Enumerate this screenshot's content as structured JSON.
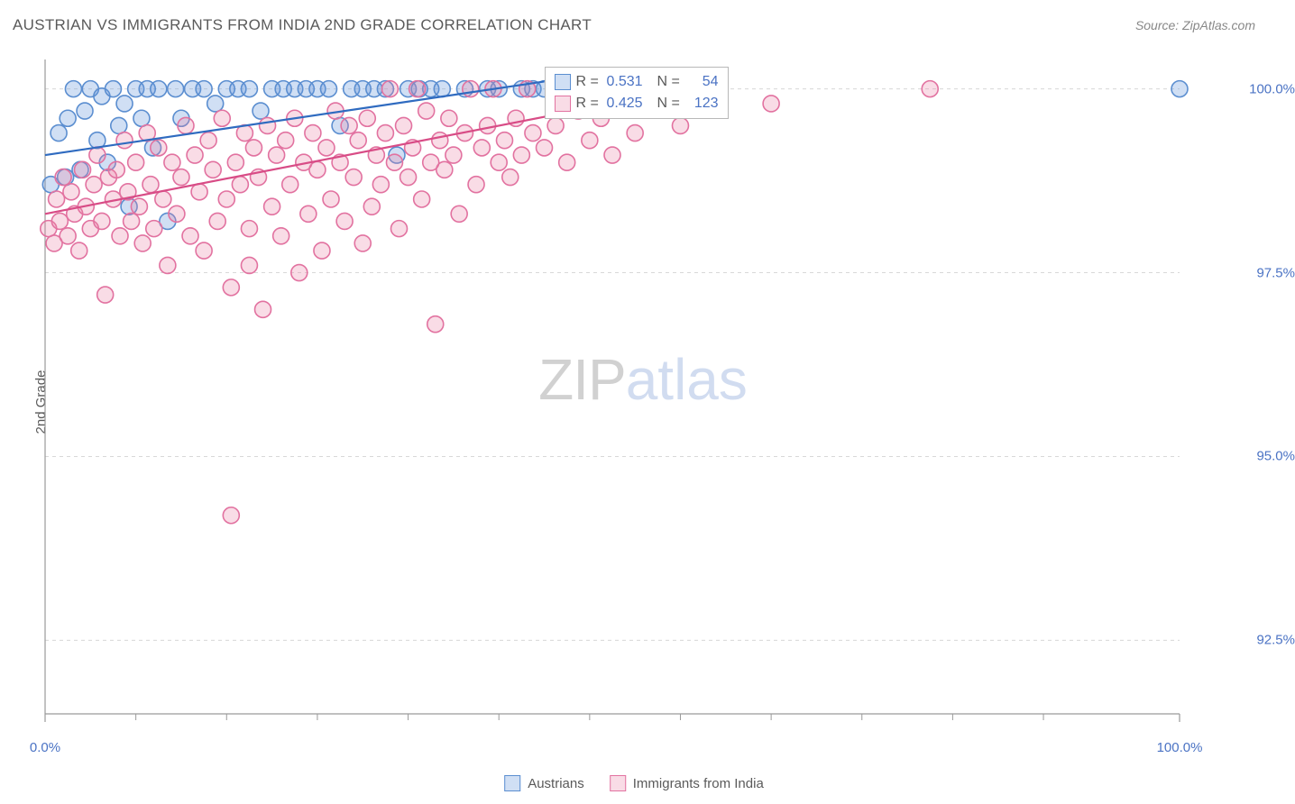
{
  "title": "AUSTRIAN VS IMMIGRANTS FROM INDIA 2ND GRADE CORRELATION CHART",
  "source": "Source: ZipAtlas.com",
  "yaxis_label": "2nd Grade",
  "watermark": {
    "left": "ZIP",
    "right": "atlas"
  },
  "chart": {
    "type": "scatter",
    "background_color": "#ffffff",
    "grid_color": "#d8d8d8",
    "axis_color": "#9a9a9a",
    "tick_label_color": "#4b73c4",
    "text_color": "#5a5a5a",
    "xlim": [
      0,
      100
    ],
    "ylim": [
      91.5,
      100.4
    ],
    "xticks": [
      0,
      100
    ],
    "xtick_labels": [
      "0.0%",
      "100.0%"
    ],
    "xtick_minor": [
      8,
      16,
      24,
      32,
      40,
      48,
      56,
      64,
      72,
      80,
      88
    ],
    "yticks": [
      92.5,
      95.0,
      97.5,
      100.0
    ],
    "ytick_labels": [
      "92.5%",
      "95.0%",
      "97.5%",
      "100.0%"
    ],
    "marker_radius": 9,
    "marker_stroke_width": 1.6,
    "series": [
      {
        "id": "austrians",
        "label": "Austrians",
        "fill": "rgba(100,150,220,0.30)",
        "stroke": "#5b8ed0",
        "R": "0.531",
        "N": "54",
        "trend": {
          "x0": 0,
          "y0": 99.1,
          "x1": 44,
          "y1": 100.1,
          "stroke": "#2f6bc0",
          "width": 2.2
        },
        "points": [
          [
            0.5,
            98.7
          ],
          [
            1.2,
            99.4
          ],
          [
            1.8,
            98.8
          ],
          [
            2.0,
            99.6
          ],
          [
            2.5,
            100.0
          ],
          [
            3.1,
            98.9
          ],
          [
            3.5,
            99.7
          ],
          [
            4.0,
            100.0
          ],
          [
            4.6,
            99.3
          ],
          [
            5.0,
            99.9
          ],
          [
            5.5,
            99.0
          ],
          [
            6.0,
            100.0
          ],
          [
            6.5,
            99.5
          ],
          [
            7.0,
            99.8
          ],
          [
            7.4,
            98.4
          ],
          [
            8.0,
            100.0
          ],
          [
            8.5,
            99.6
          ],
          [
            9.0,
            100.0
          ],
          [
            9.5,
            99.2
          ],
          [
            10.0,
            100.0
          ],
          [
            10.8,
            98.2
          ],
          [
            11.5,
            100.0
          ],
          [
            12.0,
            99.6
          ],
          [
            13.0,
            100.0
          ],
          [
            14.0,
            100.0
          ],
          [
            15.0,
            99.8
          ],
          [
            16.0,
            100.0
          ],
          [
            17.0,
            100.0
          ],
          [
            18.0,
            100.0
          ],
          [
            19.0,
            99.7
          ],
          [
            20.0,
            100.0
          ],
          [
            21.0,
            100.0
          ],
          [
            22.0,
            100.0
          ],
          [
            23.0,
            100.0
          ],
          [
            24.0,
            100.0
          ],
          [
            25.0,
            100.0
          ],
          [
            26.0,
            99.5
          ],
          [
            27.0,
            100.0
          ],
          [
            28.0,
            100.0
          ],
          [
            29.0,
            100.0
          ],
          [
            30.0,
            100.0
          ],
          [
            31.0,
            99.1
          ],
          [
            32.0,
            100.0
          ],
          [
            33.0,
            100.0
          ],
          [
            34.0,
            100.0
          ],
          [
            35.0,
            100.0
          ],
          [
            37.0,
            100.0
          ],
          [
            39.0,
            100.0
          ],
          [
            40.0,
            100.0
          ],
          [
            42.0,
            100.0
          ],
          [
            43.0,
            100.0
          ],
          [
            44.0,
            100.0
          ],
          [
            45.0,
            100.0
          ],
          [
            100.0,
            100.0
          ]
        ]
      },
      {
        "id": "india",
        "label": "Immigrants from India",
        "fill": "rgba(235,130,165,0.28)",
        "stroke": "#e272a0",
        "R": "0.425",
        "N": "123",
        "trend": {
          "x0": 0,
          "y0": 98.3,
          "x1": 50,
          "y1": 99.8,
          "stroke": "#d84c86",
          "width": 2.2
        },
        "points": [
          [
            0.3,
            98.1
          ],
          [
            0.8,
            97.9
          ],
          [
            1.0,
            98.5
          ],
          [
            1.3,
            98.2
          ],
          [
            1.6,
            98.8
          ],
          [
            2.0,
            98.0
          ],
          [
            2.3,
            98.6
          ],
          [
            2.6,
            98.3
          ],
          [
            3.0,
            97.8
          ],
          [
            3.3,
            98.9
          ],
          [
            3.6,
            98.4
          ],
          [
            4.0,
            98.1
          ],
          [
            4.3,
            98.7
          ],
          [
            4.6,
            99.1
          ],
          [
            5.0,
            98.2
          ],
          [
            5.3,
            97.2
          ],
          [
            5.6,
            98.8
          ],
          [
            6.0,
            98.5
          ],
          [
            6.3,
            98.9
          ],
          [
            6.6,
            98.0
          ],
          [
            7.0,
            99.3
          ],
          [
            7.3,
            98.6
          ],
          [
            7.6,
            98.2
          ],
          [
            8.0,
            99.0
          ],
          [
            8.3,
            98.4
          ],
          [
            8.6,
            97.9
          ],
          [
            9.0,
            99.4
          ],
          [
            9.3,
            98.7
          ],
          [
            9.6,
            98.1
          ],
          [
            10.0,
            99.2
          ],
          [
            10.4,
            98.5
          ],
          [
            10.8,
            97.6
          ],
          [
            11.2,
            99.0
          ],
          [
            11.6,
            98.3
          ],
          [
            12.0,
            98.8
          ],
          [
            12.4,
            99.5
          ],
          [
            12.8,
            98.0
          ],
          [
            13.2,
            99.1
          ],
          [
            13.6,
            98.6
          ],
          [
            14.0,
            97.8
          ],
          [
            14.4,
            99.3
          ],
          [
            14.8,
            98.9
          ],
          [
            15.2,
            98.2
          ],
          [
            15.6,
            99.6
          ],
          [
            16.0,
            98.5
          ],
          [
            16.4,
            97.3
          ],
          [
            16.4,
            94.2
          ],
          [
            16.8,
            99.0
          ],
          [
            17.2,
            98.7
          ],
          [
            17.6,
            99.4
          ],
          [
            18.0,
            98.1
          ],
          [
            18.0,
            97.6
          ],
          [
            18.4,
            99.2
          ],
          [
            18.8,
            98.8
          ],
          [
            19.2,
            97.0
          ],
          [
            19.6,
            99.5
          ],
          [
            20.0,
            98.4
          ],
          [
            20.4,
            99.1
          ],
          [
            20.8,
            98.0
          ],
          [
            21.2,
            99.3
          ],
          [
            21.6,
            98.7
          ],
          [
            22.0,
            99.6
          ],
          [
            22.4,
            97.5
          ],
          [
            22.8,
            99.0
          ],
          [
            23.2,
            98.3
          ],
          [
            23.6,
            99.4
          ],
          [
            24.0,
            98.9
          ],
          [
            24.4,
            97.8
          ],
          [
            24.8,
            99.2
          ],
          [
            25.2,
            98.5
          ],
          [
            25.6,
            99.7
          ],
          [
            26.0,
            99.0
          ],
          [
            26.4,
            98.2
          ],
          [
            26.8,
            99.5
          ],
          [
            27.2,
            98.8
          ],
          [
            27.6,
            99.3
          ],
          [
            28.0,
            97.9
          ],
          [
            28.4,
            99.6
          ],
          [
            28.8,
            98.4
          ],
          [
            29.2,
            99.1
          ],
          [
            29.6,
            98.7
          ],
          [
            30.0,
            99.4
          ],
          [
            30.4,
            100.0
          ],
          [
            30.8,
            99.0
          ],
          [
            31.2,
            98.1
          ],
          [
            31.6,
            99.5
          ],
          [
            32.0,
            98.8
          ],
          [
            32.4,
            99.2
          ],
          [
            32.8,
            100.0
          ],
          [
            33.2,
            98.5
          ],
          [
            33.6,
            99.7
          ],
          [
            34.0,
            99.0
          ],
          [
            34.4,
            96.8
          ],
          [
            34.8,
            99.3
          ],
          [
            35.2,
            98.9
          ],
          [
            35.6,
            99.6
          ],
          [
            36.0,
            99.1
          ],
          [
            36.5,
            98.3
          ],
          [
            37.0,
            99.4
          ],
          [
            37.5,
            100.0
          ],
          [
            38.0,
            98.7
          ],
          [
            38.5,
            99.2
          ],
          [
            39.0,
            99.5
          ],
          [
            39.5,
            100.0
          ],
          [
            40.0,
            99.0
          ],
          [
            40.5,
            99.3
          ],
          [
            41.0,
            98.8
          ],
          [
            41.5,
            99.6
          ],
          [
            42.0,
            99.1
          ],
          [
            42.5,
            100.0
          ],
          [
            43.0,
            99.4
          ],
          [
            44.0,
            99.2
          ],
          [
            45.0,
            99.5
          ],
          [
            46.0,
            99.0
          ],
          [
            47.0,
            99.7
          ],
          [
            48.0,
            99.3
          ],
          [
            49.0,
            99.6
          ],
          [
            50.0,
            99.1
          ],
          [
            52.0,
            99.4
          ],
          [
            54.0,
            100.0
          ],
          [
            56.0,
            99.5
          ],
          [
            78.0,
            100.0
          ],
          [
            64.0,
            99.8
          ]
        ]
      }
    ],
    "stats_box": {
      "x": 44,
      "y_top": 100.3
    }
  },
  "legend_labels": {
    "a": "Austrians",
    "b": "Immigrants from India"
  },
  "stats_labels": {
    "r": "R =",
    "n": "N ="
  }
}
